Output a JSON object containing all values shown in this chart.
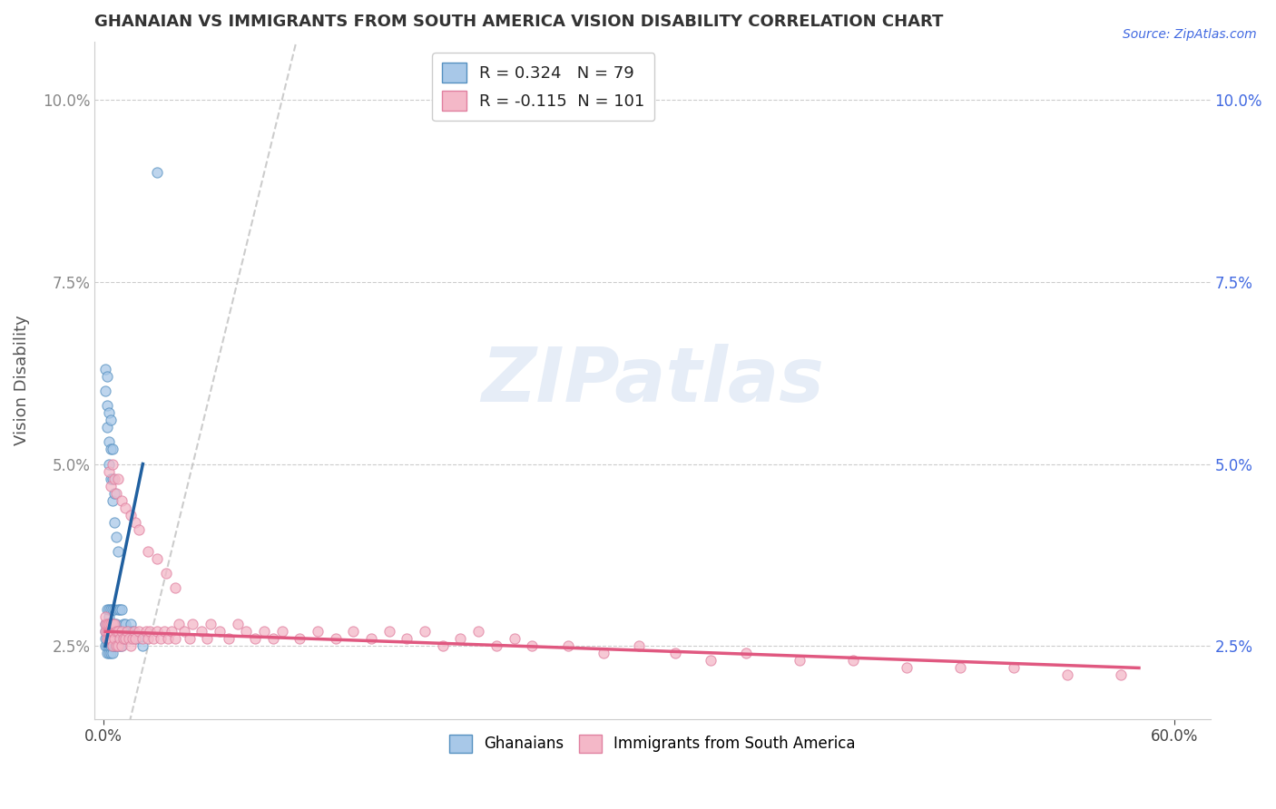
{
  "title": "GHANAIAN VS IMMIGRANTS FROM SOUTH AMERICA VISION DISABILITY CORRELATION CHART",
  "source_text": "Source: ZipAtlas.com",
  "ylabel": "Vision Disability",
  "xlim": [
    -0.005,
    0.62
  ],
  "ylim": [
    0.015,
    0.108
  ],
  "xticks": [
    0.0,
    0.6
  ],
  "xticklabels": [
    "0.0%",
    "60.0%"
  ],
  "yticks": [
    0.025,
    0.05,
    0.075,
    0.1
  ],
  "yticklabels": [
    "2.5%",
    "5.0%",
    "7.5%",
    "10.0%"
  ],
  "blue_color": "#a8c8e8",
  "pink_color": "#f4b8c8",
  "blue_edge": "#5590c0",
  "pink_edge": "#e080a0",
  "trend_blue": "#2060a0",
  "trend_pink": "#e05880",
  "diag_color": "#c0c0c0",
  "r_blue": 0.324,
  "n_blue": 79,
  "r_pink": -0.115,
  "n_pink": 101,
  "watermark": "ZIPatlas",
  "legend_label_blue": "Ghanaians",
  "legend_label_pink": "Immigrants from South America",
  "blue_x": [
    0.001,
    0.001,
    0.001,
    0.001,
    0.002,
    0.002,
    0.002,
    0.002,
    0.002,
    0.002,
    0.003,
    0.003,
    0.003,
    0.003,
    0.003,
    0.003,
    0.003,
    0.004,
    0.004,
    0.004,
    0.004,
    0.004,
    0.004,
    0.005,
    0.005,
    0.005,
    0.005,
    0.005,
    0.005,
    0.006,
    0.006,
    0.006,
    0.006,
    0.006,
    0.007,
    0.007,
    0.007,
    0.007,
    0.008,
    0.008,
    0.008,
    0.008,
    0.009,
    0.009,
    0.009,
    0.01,
    0.01,
    0.01,
    0.011,
    0.011,
    0.012,
    0.012,
    0.013,
    0.014,
    0.015,
    0.015,
    0.016,
    0.018,
    0.02,
    0.022,
    0.001,
    0.001,
    0.002,
    0.002,
    0.002,
    0.003,
    0.003,
    0.003,
    0.004,
    0.004,
    0.004,
    0.005,
    0.005,
    0.005,
    0.006,
    0.006,
    0.007,
    0.008,
    0.03
  ],
  "blue_y": [
    0.025,
    0.026,
    0.027,
    0.028,
    0.024,
    0.025,
    0.026,
    0.027,
    0.028,
    0.03,
    0.024,
    0.025,
    0.026,
    0.027,
    0.028,
    0.029,
    0.03,
    0.024,
    0.025,
    0.026,
    0.027,
    0.028,
    0.03,
    0.024,
    0.025,
    0.026,
    0.027,
    0.028,
    0.03,
    0.025,
    0.026,
    0.027,
    0.028,
    0.03,
    0.025,
    0.026,
    0.027,
    0.028,
    0.025,
    0.026,
    0.027,
    0.03,
    0.025,
    0.027,
    0.03,
    0.025,
    0.027,
    0.03,
    0.026,
    0.028,
    0.026,
    0.028,
    0.027,
    0.027,
    0.026,
    0.028,
    0.027,
    0.026,
    0.026,
    0.025,
    0.06,
    0.063,
    0.055,
    0.058,
    0.062,
    0.05,
    0.053,
    0.057,
    0.048,
    0.052,
    0.056,
    0.045,
    0.048,
    0.052,
    0.042,
    0.046,
    0.04,
    0.038,
    0.09
  ],
  "pink_x": [
    0.001,
    0.001,
    0.001,
    0.002,
    0.002,
    0.002,
    0.003,
    0.003,
    0.003,
    0.004,
    0.004,
    0.004,
    0.005,
    0.005,
    0.005,
    0.006,
    0.006,
    0.007,
    0.007,
    0.008,
    0.008,
    0.009,
    0.01,
    0.01,
    0.011,
    0.012,
    0.013,
    0.014,
    0.015,
    0.016,
    0.017,
    0.018,
    0.02,
    0.022,
    0.024,
    0.025,
    0.026,
    0.028,
    0.03,
    0.032,
    0.034,
    0.036,
    0.038,
    0.04,
    0.042,
    0.045,
    0.048,
    0.05,
    0.055,
    0.058,
    0.06,
    0.065,
    0.07,
    0.075,
    0.08,
    0.085,
    0.09,
    0.095,
    0.1,
    0.11,
    0.12,
    0.13,
    0.14,
    0.15,
    0.16,
    0.17,
    0.18,
    0.19,
    0.2,
    0.21,
    0.22,
    0.23,
    0.24,
    0.26,
    0.28,
    0.3,
    0.32,
    0.34,
    0.36,
    0.39,
    0.42,
    0.45,
    0.48,
    0.51,
    0.54,
    0.57,
    0.003,
    0.004,
    0.005,
    0.006,
    0.007,
    0.008,
    0.01,
    0.012,
    0.015,
    0.018,
    0.02,
    0.025,
    0.03,
    0.035,
    0.04
  ],
  "pink_y": [
    0.027,
    0.028,
    0.029,
    0.026,
    0.027,
    0.028,
    0.026,
    0.027,
    0.028,
    0.026,
    0.027,
    0.028,
    0.025,
    0.027,
    0.028,
    0.026,
    0.028,
    0.025,
    0.027,
    0.025,
    0.027,
    0.026,
    0.025,
    0.027,
    0.026,
    0.026,
    0.027,
    0.026,
    0.025,
    0.026,
    0.027,
    0.026,
    0.027,
    0.026,
    0.027,
    0.026,
    0.027,
    0.026,
    0.027,
    0.026,
    0.027,
    0.026,
    0.027,
    0.026,
    0.028,
    0.027,
    0.026,
    0.028,
    0.027,
    0.026,
    0.028,
    0.027,
    0.026,
    0.028,
    0.027,
    0.026,
    0.027,
    0.026,
    0.027,
    0.026,
    0.027,
    0.026,
    0.027,
    0.026,
    0.027,
    0.026,
    0.027,
    0.025,
    0.026,
    0.027,
    0.025,
    0.026,
    0.025,
    0.025,
    0.024,
    0.025,
    0.024,
    0.023,
    0.024,
    0.023,
    0.023,
    0.022,
    0.022,
    0.022,
    0.021,
    0.021,
    0.049,
    0.047,
    0.05,
    0.048,
    0.046,
    0.048,
    0.045,
    0.044,
    0.043,
    0.042,
    0.041,
    0.038,
    0.037,
    0.035,
    0.033
  ],
  "blue_trend_x": [
    0.001,
    0.022
  ],
  "blue_trend_y_start": 0.025,
  "blue_trend_y_end": 0.05,
  "pink_trend_x": [
    0.001,
    0.58
  ],
  "pink_trend_y_start": 0.027,
  "pink_trend_y_end": 0.022
}
